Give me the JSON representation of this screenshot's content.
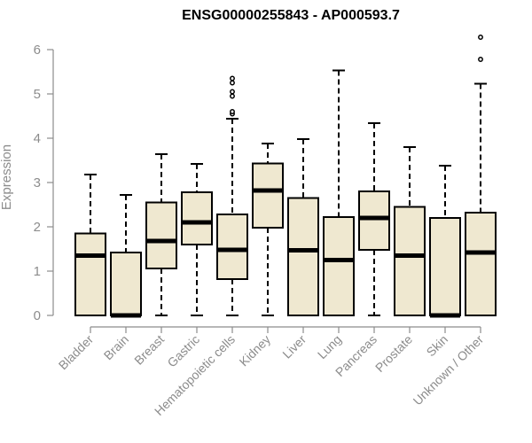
{
  "chart_data": {
    "type": "box",
    "title": "ENSG00000255843 - AP000593.7",
    "xlabel": "",
    "ylabel": "Expression",
    "ylim": [
      0,
      6.2
    ],
    "yticks": [
      0,
      1,
      2,
      3,
      4,
      5,
      6
    ],
    "grid": false,
    "colors": {
      "box_fill": "#efe8d0",
      "stroke": "#000000",
      "axis": "#8c8c8c"
    },
    "categories": [
      "Bladder",
      "Brain",
      "Breast",
      "Gastric",
      "Hematopoietic cells",
      "Kidney",
      "Liver",
      "Lung",
      "Pancreas",
      "Prostate",
      "Skin",
      "Unknown / Other"
    ],
    "boxes": [
      {
        "min": 0,
        "q1": 0,
        "median": 1.35,
        "q3": 1.85,
        "max": 3.18,
        "outliers": []
      },
      {
        "min": 0,
        "q1": 0,
        "median": 0,
        "q3": 1.42,
        "max": 2.72,
        "outliers": []
      },
      {
        "min": 0,
        "q1": 1.06,
        "median": 1.68,
        "q3": 2.55,
        "max": 3.64,
        "outliers": []
      },
      {
        "min": 0,
        "q1": 1.6,
        "median": 2.1,
        "q3": 2.78,
        "max": 3.42,
        "outliers": []
      },
      {
        "min": 0,
        "q1": 0.82,
        "median": 1.48,
        "q3": 2.28,
        "max": 4.44,
        "outliers": [
          4.55,
          4.6,
          4.95,
          5.05,
          5.25,
          5.35
        ]
      },
      {
        "min": 0,
        "q1": 1.98,
        "median": 2.82,
        "q3": 3.43,
        "max": 3.88,
        "outliers": []
      },
      {
        "min": 0,
        "q1": 0,
        "median": 1.47,
        "q3": 2.65,
        "max": 3.98,
        "outliers": []
      },
      {
        "min": 0,
        "q1": 0,
        "median": 1.25,
        "q3": 2.22,
        "max": 5.53,
        "outliers": []
      },
      {
        "min": 0,
        "q1": 1.48,
        "median": 2.2,
        "q3": 2.8,
        "max": 4.34,
        "outliers": []
      },
      {
        "min": 0,
        "q1": 0,
        "median": 1.35,
        "q3": 2.45,
        "max": 3.8,
        "outliers": []
      },
      {
        "min": 0,
        "q1": 0,
        "median": 0,
        "q3": 2.2,
        "max": 3.38,
        "outliers": []
      },
      {
        "min": 0,
        "q1": 0,
        "median": 1.42,
        "q3": 2.32,
        "max": 5.23,
        "outliers": [
          5.78,
          6.28
        ]
      }
    ]
  }
}
